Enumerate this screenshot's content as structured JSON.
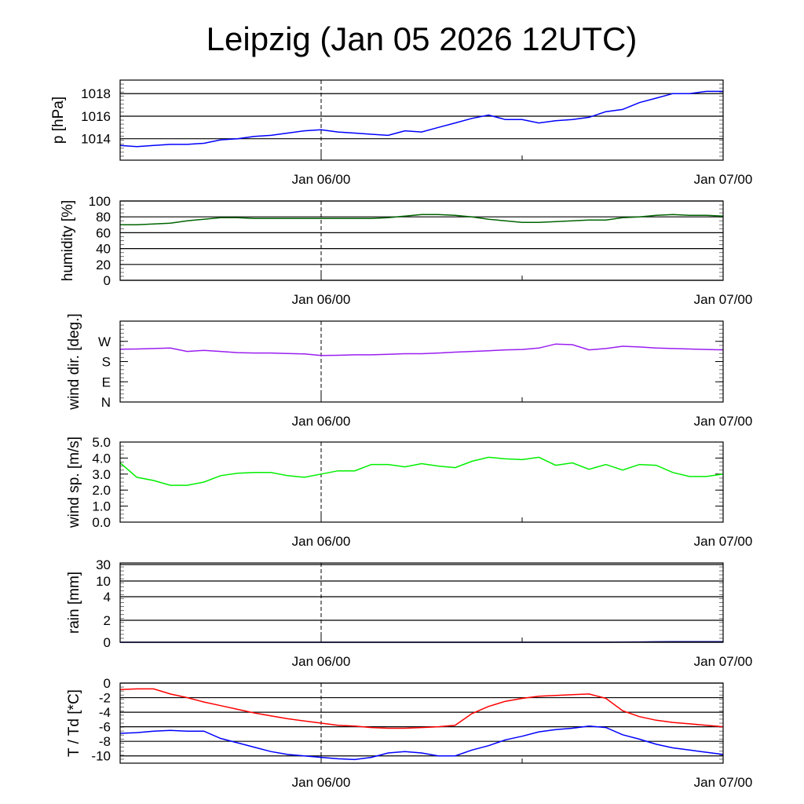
{
  "title": "Leipzig (Jan 05 2026 12UTC)",
  "chart_data": [
    {
      "type": "line",
      "id": "pressure",
      "ylabel": "p [hPa]",
      "x_hours_from_start": "0..36 hourly",
      "ylim": [
        1012.1,
        1019.2
      ],
      "yticks": [
        {
          "v": 1014,
          "label": "1014"
        },
        {
          "v": 1016,
          "label": "1016"
        },
        {
          "v": 1018,
          "label": "1018"
        }
      ],
      "series": [
        {
          "name": "p",
          "color": "#0000ff",
          "values": [
            1013.4,
            1013.3,
            1013.4,
            1013.5,
            1013.5,
            1013.6,
            1013.9,
            1014.0,
            1014.2,
            1014.3,
            1014.5,
            1014.7,
            1014.8,
            1014.6,
            1014.5,
            1014.4,
            1014.3,
            1014.7,
            1014.6,
            1015.0,
            1015.4,
            1015.8,
            1016.1,
            1015.7,
            1015.7,
            1015.4,
            1015.6,
            1015.7,
            1015.9,
            1016.4,
            1016.6,
            1017.2,
            1017.6,
            1018.0,
            1018.0,
            1018.2,
            1018.2
          ]
        }
      ]
    },
    {
      "type": "line",
      "id": "humidity",
      "ylabel": "humidity [%]",
      "ylim": [
        0,
        100
      ],
      "yticks": [
        {
          "v": 0,
          "label": "0"
        },
        {
          "v": 20,
          "label": "20"
        },
        {
          "v": 40,
          "label": "40"
        },
        {
          "v": 60,
          "label": "60"
        },
        {
          "v": 80,
          "label": "80"
        },
        {
          "v": 100,
          "label": "100"
        }
      ],
      "series": [
        {
          "name": "humidity",
          "color": "#006400",
          "values": [
            70,
            70,
            71,
            72,
            75,
            77,
            79,
            79,
            78,
            78,
            78,
            78,
            78,
            78,
            78,
            78,
            79,
            81,
            83,
            83,
            82,
            80,
            77,
            75,
            73,
            73,
            74,
            75,
            76,
            76,
            79,
            80,
            82,
            83,
            82,
            82,
            81
          ]
        }
      ]
    },
    {
      "type": "line",
      "id": "wind_dir",
      "ylabel": "wind dir. [deg.]",
      "ylim": [
        0,
        360
      ],
      "yticks": [
        {
          "v": 0,
          "label": "N"
        },
        {
          "v": 90,
          "label": "E"
        },
        {
          "v": 180,
          "label": "S"
        },
        {
          "v": 270,
          "label": "W"
        }
      ],
      "series": [
        {
          "name": "wind direction",
          "color": "#9a1ef0",
          "values": [
            235,
            236,
            238,
            240,
            225,
            230,
            225,
            220,
            218,
            218,
            216,
            214,
            207,
            208,
            210,
            210,
            212,
            215,
            215,
            218,
            222,
            225,
            228,
            232,
            234,
            240,
            258,
            255,
            232,
            238,
            248,
            245,
            240,
            238,
            236,
            234,
            232
          ]
        }
      ]
    },
    {
      "type": "line",
      "id": "wind_speed",
      "ylabel": "wind sp. [m/s]",
      "ylim": [
        0,
        5
      ],
      "yticks": [
        {
          "v": 0,
          "label": "0.0"
        },
        {
          "v": 1,
          "label": "1.0"
        },
        {
          "v": 2,
          "label": "2.0"
        },
        {
          "v": 3,
          "label": "3.0"
        },
        {
          "v": 4,
          "label": "4.0"
        },
        {
          "v": 5,
          "label": "5.0"
        }
      ],
      "series": [
        {
          "name": "wind speed",
          "color": "#00ee00",
          "values": [
            3.7,
            2.8,
            2.6,
            2.3,
            2.3,
            2.5,
            2.9,
            3.05,
            3.1,
            3.1,
            2.9,
            2.8,
            3.0,
            3.2,
            3.2,
            3.6,
            3.6,
            3.45,
            3.65,
            3.5,
            3.4,
            3.8,
            4.05,
            3.95,
            3.9,
            4.05,
            3.55,
            3.7,
            3.3,
            3.6,
            3.25,
            3.6,
            3.55,
            3.1,
            2.85,
            2.85,
            3.0
          ]
        }
      ]
    },
    {
      "type": "line",
      "id": "rain",
      "ylabel": "rain [mm]",
      "ylim": [
        0,
        30
      ],
      "yscale": "nonlinear",
      "yticks": [
        {
          "v": 0,
          "label": "0"
        },
        {
          "v": 2,
          "label": "2"
        },
        {
          "v": 4,
          "label": "4"
        },
        {
          "v": 10,
          "label": "10"
        },
        {
          "v": 30,
          "label": "30"
        }
      ],
      "series": [
        {
          "name": "rain",
          "color": "#00008b",
          "values": [
            0,
            0,
            0,
            0,
            0,
            0,
            0,
            0,
            0,
            0,
            0,
            0,
            0,
            0,
            0,
            0,
            0,
            0,
            0,
            0,
            0,
            0,
            0,
            0,
            0,
            0,
            0,
            0,
            0,
            0,
            0.02,
            0.03,
            0.04,
            0.05,
            0.05,
            0.06,
            0.06
          ]
        }
      ]
    },
    {
      "type": "line",
      "id": "temperature",
      "ylabel": "T / Td [*C]",
      "ylim": [
        -11,
        0
      ],
      "yticks": [
        {
          "v": 0,
          "label": "0"
        },
        {
          "v": -2,
          "label": "-2"
        },
        {
          "v": -4,
          "label": "-4"
        },
        {
          "v": -6,
          "label": "-6"
        },
        {
          "v": -8,
          "label": "-8"
        },
        {
          "v": -10,
          "label": "-10"
        }
      ],
      "series": [
        {
          "name": "T",
          "color": "#ff0000",
          "values": [
            -0.9,
            -0.8,
            -0.8,
            -1.5,
            -2.0,
            -2.6,
            -3.1,
            -3.6,
            -4.1,
            -4.5,
            -4.9,
            -5.2,
            -5.5,
            -5.8,
            -5.9,
            -6.1,
            -6.2,
            -6.2,
            -6.1,
            -6.0,
            -5.8,
            -4.2,
            -3.2,
            -2.5,
            -2.1,
            -1.8,
            -1.7,
            -1.6,
            -1.5,
            -2.1,
            -3.8,
            -4.6,
            -5.1,
            -5.4,
            -5.6,
            -5.8,
            -6.0
          ]
        },
        {
          "name": "Td",
          "color": "#0000ff",
          "values": [
            -6.9,
            -6.8,
            -6.6,
            -6.5,
            -6.6,
            -6.6,
            -7.6,
            -8.2,
            -8.8,
            -9.4,
            -9.8,
            -10.0,
            -10.2,
            -10.4,
            -10.5,
            -10.2,
            -9.6,
            -9.4,
            -9.6,
            -10.0,
            -10.0,
            -9.2,
            -8.6,
            -7.8,
            -7.3,
            -6.7,
            -6.4,
            -6.2,
            -5.9,
            -6.1,
            -7.1,
            -7.7,
            -8.4,
            -8.9,
            -9.2,
            -9.5,
            -9.8
          ]
        }
      ]
    }
  ],
  "xticks": [
    {
      "hour": 12,
      "label": "Jan 06/00"
    },
    {
      "hour": 36,
      "label": "Jan 07/00"
    }
  ],
  "x_range_hours": [
    0,
    36
  ],
  "minor_xtick_hour": 24
}
